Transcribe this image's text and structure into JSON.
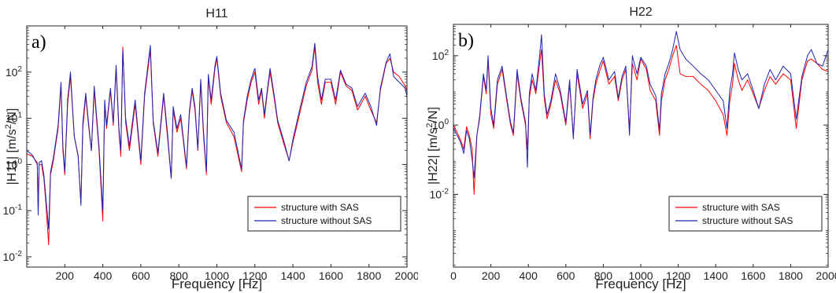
{
  "chart_data": [
    {
      "type": "line",
      "panel_letter": "a)",
      "title": "H11",
      "xlabel": "Frequency [Hz]",
      "ylabel": "|H11|   [m/s",
      "ylabel_sup": "2",
      "ylabel_tail": "/N]",
      "xlim": [
        0,
        2000
      ],
      "ylim": [
        0.006,
        1000
      ],
      "yscale": "log",
      "xticks": [
        200,
        400,
        600,
        800,
        1000,
        1200,
        1400,
        1600,
        1800,
        2000
      ],
      "yticks": [
        {
          "value": 0.01,
          "exp": "-2"
        },
        {
          "value": 0.1,
          "exp": "-1"
        },
        {
          "value": 1,
          "exp": "0"
        },
        {
          "value": 10,
          "exp": "1"
        },
        {
          "value": 100,
          "exp": "2"
        }
      ],
      "legend": "bottom-right",
      "series": [
        {
          "name": "structure with SAS",
          "color": "#ff0000",
          "x": [
            0,
            30,
            55,
            60,
            65,
            78,
            90,
            100,
            115,
            125,
            140,
            165,
            180,
            190,
            200,
            215,
            230,
            250,
            270,
            285,
            295,
            310,
            325,
            340,
            355,
            380,
            400,
            410,
            420,
            440,
            455,
            470,
            485,
            495,
            505,
            520,
            540,
            570,
            600,
            620,
            650,
            665,
            690,
            720,
            740,
            760,
            770,
            790,
            810,
            840,
            855,
            870,
            885,
            900,
            915,
            930,
            945,
            955,
            970,
            990,
            1000,
            1020,
            1050,
            1090,
            1130,
            1140,
            1160,
            1180,
            1200,
            1220,
            1235,
            1250,
            1265,
            1280,
            1300,
            1320,
            1350,
            1380,
            1400,
            1430,
            1470,
            1500,
            1515,
            1530,
            1550,
            1570,
            1600,
            1625,
            1650,
            1680,
            1710,
            1740,
            1780,
            1810,
            1840,
            1860,
            1890,
            1910,
            1930,
            1960,
            1990,
            2000
          ],
          "y": [
            1.7,
            1.5,
            1.1,
            0.1,
            1.0,
            1.0,
            0.5,
            0.15,
            0.018,
            0.6,
            1.2,
            6,
            50,
            2,
            0.6,
            20,
            80,
            4,
            1.5,
            0.15,
            6,
            30,
            7,
            2,
            40,
            2,
            0.06,
            20,
            6,
            40,
            7,
            120,
            5,
            1.5,
            350,
            8,
            2,
            20,
            1,
            30,
            300,
            8,
            1.5,
            30,
            4,
            0.5,
            15,
            5,
            10,
            0.8,
            12,
            40,
            15,
            2,
            60,
            4,
            0.6,
            80,
            20,
            120,
            200,
            30,
            8,
            4,
            0.7,
            8,
            25,
            60,
            100,
            20,
            40,
            10,
            35,
            100,
            30,
            8,
            3,
            1.2,
            3,
            10,
            50,
            110,
            350,
            60,
            20,
            60,
            60,
            20,
            100,
            50,
            40,
            15,
            30,
            15,
            8,
            40,
            150,
            200,
            100,
            80,
            50,
            40
          ]
        },
        {
          "name": "structure without SAS",
          "color": "#1e24b4",
          "x": [
            0,
            30,
            55,
            60,
            65,
            78,
            90,
            100,
            115,
            125,
            140,
            165,
            180,
            190,
            200,
            215,
            230,
            250,
            270,
            285,
            295,
            310,
            325,
            340,
            355,
            380,
            400,
            410,
            420,
            440,
            455,
            470,
            485,
            495,
            505,
            520,
            540,
            570,
            600,
            620,
            650,
            665,
            690,
            720,
            740,
            760,
            770,
            790,
            810,
            840,
            855,
            870,
            885,
            900,
            915,
            930,
            945,
            955,
            970,
            990,
            1000,
            1020,
            1050,
            1090,
            1130,
            1140,
            1160,
            1180,
            1200,
            1220,
            1235,
            1250,
            1265,
            1280,
            1300,
            1320,
            1350,
            1380,
            1400,
            1430,
            1470,
            1500,
            1515,
            1530,
            1550,
            1570,
            1600,
            1625,
            1650,
            1680,
            1710,
            1740,
            1780,
            1810,
            1840,
            1860,
            1890,
            1910,
            1930,
            1960,
            1990,
            2000
          ],
          "y": [
            2.0,
            1.6,
            1.0,
            0.08,
            1.1,
            1.2,
            0.6,
            0.2,
            0.04,
            0.7,
            1.4,
            7,
            60,
            2.5,
            0.7,
            25,
            100,
            4,
            1.6,
            0.13,
            8,
            35,
            8,
            2,
            50,
            2.4,
            0.1,
            25,
            7,
            45,
            8,
            140,
            6,
            2,
            300,
            10,
            2.5,
            25,
            1.2,
            35,
            380,
            9,
            1.8,
            35,
            5,
            0.5,
            18,
            6,
            12,
            0.9,
            14,
            45,
            18,
            2.2,
            70,
            5,
            0.7,
            90,
            25,
            140,
            220,
            35,
            9,
            5,
            0.8,
            9,
            30,
            70,
            120,
            25,
            45,
            12,
            40,
            120,
            35,
            9,
            3.5,
            1.2,
            3.5,
            12,
            60,
            130,
            420,
            80,
            25,
            70,
            70,
            25,
            110,
            55,
            45,
            18,
            35,
            18,
            7,
            45,
            160,
            250,
            80,
            60,
            45,
            30
          ]
        }
      ]
    },
    {
      "type": "line",
      "panel_letter": "b)",
      "title": "H22",
      "xlabel": "Frequency [Hz]",
      "ylabel": "|H22|   [m/s",
      "ylabel_sup": "2",
      "ylabel_tail": "/N]",
      "xlim": [
        0,
        2000
      ],
      "ylim": [
        8e-05,
        800
      ],
      "yscale": "log",
      "xticks": [
        0,
        200,
        400,
        600,
        800,
        1000,
        1200,
        1400,
        1600,
        1800,
        2000
      ],
      "yticks": [
        {
          "value": 0.01,
          "exp": "-2"
        },
        {
          "value": 1,
          "exp": "0"
        },
        {
          "value": 100,
          "exp": "2"
        }
      ],
      "legend": "bottom-right",
      "series": [
        {
          "name": "structure with SAS",
          "color": "#ff0000",
          "x": [
            0,
            20,
            40,
            55,
            70,
            85,
            100,
            110,
            125,
            140,
            160,
            175,
            185,
            200,
            215,
            235,
            260,
            285,
            305,
            320,
            340,
            360,
            385,
            395,
            405,
            420,
            440,
            460,
            470,
            485,
            500,
            520,
            545,
            570,
            600,
            620,
            640,
            660,
            690,
            715,
            730,
            745,
            760,
            780,
            800,
            830,
            860,
            880,
            900,
            920,
            940,
            955,
            980,
            1000,
            1030,
            1050,
            1080,
            1100,
            1110,
            1130,
            1150,
            1170,
            1190,
            1210,
            1240,
            1280,
            1320,
            1360,
            1400,
            1440,
            1460,
            1475,
            1490,
            1500,
            1520,
            1540,
            1570,
            1600,
            1630,
            1660,
            1690,
            1720,
            1760,
            1800,
            1830,
            1860,
            1890,
            1910,
            1940,
            1970,
            2000
          ],
          "y": [
            1.0,
            0.6,
            0.35,
            0.2,
            0.9,
            0.5,
            0.2,
            0.01,
            0.5,
            1.5,
            25,
            8,
            80,
            2,
            0.8,
            15,
            40,
            5,
            1,
            0.5,
            30,
            5,
            1,
            0.2,
            6,
            20,
            8,
            60,
            150,
            6,
            1.5,
            4,
            20,
            8,
            1,
            15,
            0.5,
            30,
            3,
            8,
            0.4,
            5,
            15,
            35,
            70,
            15,
            25,
            5,
            20,
            40,
            0.7,
            60,
            20,
            80,
            40,
            10,
            5,
            0.5,
            5,
            20,
            40,
            100,
            200,
            30,
            25,
            25,
            15,
            10,
            5,
            2,
            0.5,
            5,
            15,
            60,
            20,
            10,
            20,
            8,
            3,
            10,
            25,
            15,
            30,
            20,
            0.8,
            20,
            70,
            80,
            60,
            40,
            35
          ]
        },
        {
          "name": "structure without SAS",
          "color": "#1e24b4",
          "x": [
            0,
            20,
            40,
            55,
            70,
            85,
            100,
            110,
            125,
            140,
            160,
            175,
            185,
            200,
            215,
            235,
            260,
            285,
            305,
            320,
            340,
            360,
            385,
            395,
            405,
            420,
            440,
            460,
            470,
            485,
            500,
            520,
            545,
            570,
            600,
            620,
            640,
            660,
            690,
            715,
            730,
            745,
            760,
            780,
            800,
            830,
            860,
            880,
            900,
            920,
            940,
            955,
            980,
            1000,
            1030,
            1050,
            1080,
            1100,
            1110,
            1130,
            1150,
            1170,
            1190,
            1210,
            1240,
            1280,
            1320,
            1360,
            1400,
            1440,
            1460,
            1475,
            1490,
            1500,
            1520,
            1540,
            1570,
            1600,
            1630,
            1660,
            1690,
            1720,
            1760,
            1800,
            1830,
            1860,
            1890,
            1910,
            1940,
            1970,
            2000
          ],
          "y": [
            0.8,
            0.5,
            0.3,
            0.15,
            0.7,
            0.4,
            0.1,
            0.03,
            0.5,
            1.8,
            30,
            10,
            100,
            3,
            1,
            20,
            50,
            6,
            1.2,
            0.6,
            40,
            6,
            1.2,
            0.06,
            8,
            30,
            10,
            100,
            400,
            8,
            2,
            5,
            30,
            10,
            1.2,
            20,
            0.4,
            40,
            4,
            10,
            0.5,
            6,
            20,
            50,
            90,
            20,
            35,
            6,
            25,
            50,
            0.5,
            100,
            30,
            90,
            50,
            15,
            7,
            0.7,
            8,
            30,
            60,
            150,
            500,
            150,
            80,
            50,
            30,
            20,
            10,
            5,
            0.8,
            10,
            30,
            120,
            40,
            20,
            30,
            10,
            3,
            15,
            40,
            20,
            50,
            30,
            1.5,
            25,
            100,
            150,
            60,
            50,
            150
          ]
        }
      ]
    }
  ]
}
